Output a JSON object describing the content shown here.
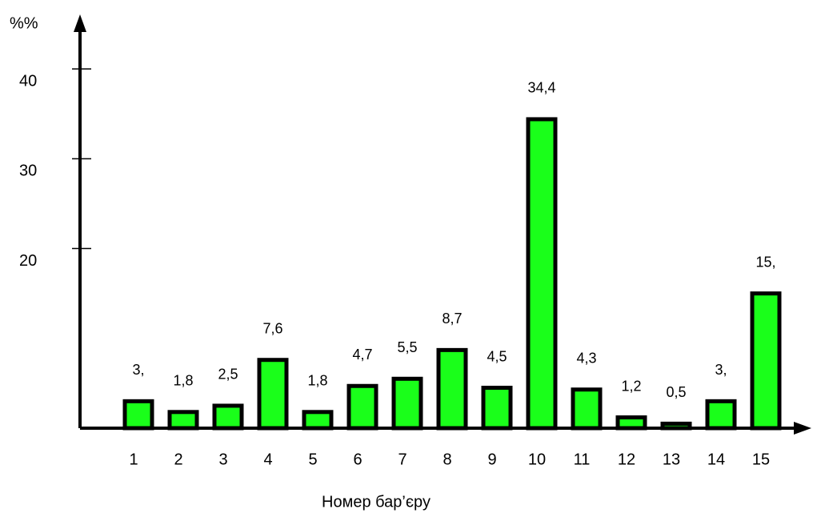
{
  "chart_data": {
    "type": "bar",
    "y_label": "%%",
    "x_label": "Номер бар’єру",
    "categories": [
      "1",
      "2",
      "3",
      "4",
      "5",
      "6",
      "7",
      "8",
      "9",
      "10",
      "11",
      "12",
      "13",
      "14",
      "15"
    ],
    "values": [
      3,
      1.8,
      2.5,
      7.6,
      1.8,
      4.7,
      5.5,
      8.7,
      4.5,
      34.4,
      4.3,
      1.2,
      0.5,
      3,
      15
    ],
    "value_labels": [
      "3,",
      "1,8",
      "2,5",
      "7,6",
      "1,8",
      "4,7",
      "5,5",
      "8,7",
      "4,5",
      "34,4",
      "4,3",
      "1,2",
      "0,5",
      "3,",
      "15,"
    ],
    "color": "#1aff1a",
    "ylim": [
      0,
      45
    ],
    "yticks": [
      20,
      30,
      40
    ]
  }
}
